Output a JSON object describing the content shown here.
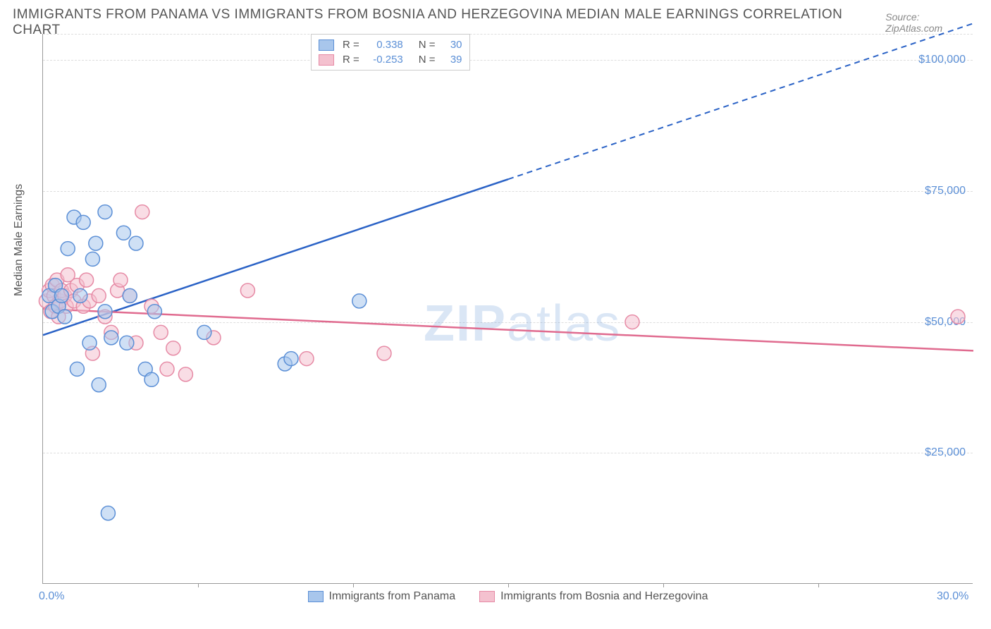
{
  "header": {
    "title": "IMMIGRANTS FROM PANAMA VS IMMIGRANTS FROM BOSNIA AND HERZEGOVINA MEDIAN MALE EARNINGS CORRELATION CHART",
    "source": "Source: ZipAtlas.com"
  },
  "ylabel": "Median Male Earnings",
  "watermark": {
    "bold": "ZIP",
    "rest": "atlas"
  },
  "chart": {
    "type": "scatter",
    "xlim": [
      0,
      30
    ],
    "ylim": [
      0,
      105000
    ],
    "y_ticks": [
      {
        "value": 25000,
        "label": "$25,000"
      },
      {
        "value": 50000,
        "label": "$50,000"
      },
      {
        "value": 75000,
        "label": "$75,000"
      },
      {
        "value": 100000,
        "label": "$100,000"
      }
    ],
    "x_ticks_labels": [
      {
        "value": 0,
        "label": "0.0%"
      },
      {
        "value": 30,
        "label": "30.0%"
      }
    ],
    "x_minor_ticks": [
      5,
      10,
      15,
      20,
      25
    ],
    "grid_color": "#dddddd",
    "axis_color": "#999999",
    "background_color": "#ffffff",
    "marker_radius": 10,
    "marker_opacity": 0.55,
    "series": [
      {
        "name": "Immigrants from Panama",
        "color_fill": "#a8c6ec",
        "color_stroke": "#5b8fd6",
        "line_color": "#2a62c6",
        "R": "0.338",
        "N": "30",
        "points": [
          [
            0.2,
            55000
          ],
          [
            0.3,
            52000
          ],
          [
            0.4,
            57000
          ],
          [
            0.5,
            53000
          ],
          [
            0.6,
            55000
          ],
          [
            0.7,
            51000
          ],
          [
            0.8,
            64000
          ],
          [
            1.0,
            70000
          ],
          [
            1.1,
            41000
          ],
          [
            1.2,
            55000
          ],
          [
            1.3,
            69000
          ],
          [
            1.5,
            46000
          ],
          [
            1.6,
            62000
          ],
          [
            1.7,
            65000
          ],
          [
            1.8,
            38000
          ],
          [
            2.0,
            52000
          ],
          [
            2.0,
            71000
          ],
          [
            2.1,
            13500
          ],
          [
            2.2,
            47000
          ],
          [
            2.6,
            67000
          ],
          [
            2.7,
            46000
          ],
          [
            2.8,
            55000
          ],
          [
            3.0,
            65000
          ],
          [
            3.3,
            41000
          ],
          [
            3.5,
            39000
          ],
          [
            3.6,
            52000
          ],
          [
            5.2,
            48000
          ],
          [
            7.8,
            42000
          ],
          [
            8.0,
            43000
          ],
          [
            10.2,
            54000
          ]
        ],
        "trend": {
          "x1": 0,
          "y1": 47500,
          "x2": 30,
          "y2": 107000,
          "dash_from_x": 15
        }
      },
      {
        "name": "Immigrants from Bosnia and Herzegovina",
        "color_fill": "#f4c1cf",
        "color_stroke": "#e68aa5",
        "line_color": "#e06b8f",
        "R": "-0.253",
        "N": "39",
        "points": [
          [
            0.1,
            54000
          ],
          [
            0.2,
            56000
          ],
          [
            0.25,
            52000
          ],
          [
            0.3,
            57000
          ],
          [
            0.35,
            55000
          ],
          [
            0.4,
            53000
          ],
          [
            0.45,
            58000
          ],
          [
            0.5,
            51000
          ],
          [
            0.55,
            54000
          ],
          [
            0.6,
            56000
          ],
          [
            0.7,
            55000
          ],
          [
            0.75,
            53000
          ],
          [
            0.8,
            59000
          ],
          [
            0.9,
            56000
          ],
          [
            1.0,
            54000
          ],
          [
            1.1,
            57000
          ],
          [
            1.3,
            53000
          ],
          [
            1.4,
            58000
          ],
          [
            1.5,
            54000
          ],
          [
            1.6,
            44000
          ],
          [
            1.8,
            55000
          ],
          [
            2.0,
            51000
          ],
          [
            2.2,
            48000
          ],
          [
            2.4,
            56000
          ],
          [
            2.5,
            58000
          ],
          [
            2.8,
            55000
          ],
          [
            3.0,
            46000
          ],
          [
            3.2,
            71000
          ],
          [
            3.5,
            53000
          ],
          [
            3.8,
            48000
          ],
          [
            4.0,
            41000
          ],
          [
            4.2,
            45000
          ],
          [
            4.6,
            40000
          ],
          [
            5.5,
            47000
          ],
          [
            6.6,
            56000
          ],
          [
            8.5,
            43000
          ],
          [
            11.0,
            44000
          ],
          [
            19.0,
            50000
          ],
          [
            29.5,
            51000
          ]
        ],
        "trend": {
          "x1": 0,
          "y1": 52500,
          "x2": 30,
          "y2": 44500,
          "dash_from_x": 999
        }
      }
    ],
    "legend_box": {
      "rows": [
        {
          "swatch_fill": "#a8c6ec",
          "swatch_stroke": "#5b8fd6",
          "R_label": "R =",
          "R": "0.338",
          "N_label": "N =",
          "N": "30"
        },
        {
          "swatch_fill": "#f4c1cf",
          "swatch_stroke": "#e68aa5",
          "R_label": "R =",
          "R": "-0.253",
          "N_label": "N =",
          "N": "39"
        }
      ]
    },
    "bottom_legend": [
      {
        "swatch_fill": "#a8c6ec",
        "swatch_stroke": "#5b8fd6",
        "label": "Immigrants from Panama"
      },
      {
        "swatch_fill": "#f4c1cf",
        "swatch_stroke": "#e68aa5",
        "label": "Immigrants from Bosnia and Herzegovina"
      }
    ]
  }
}
